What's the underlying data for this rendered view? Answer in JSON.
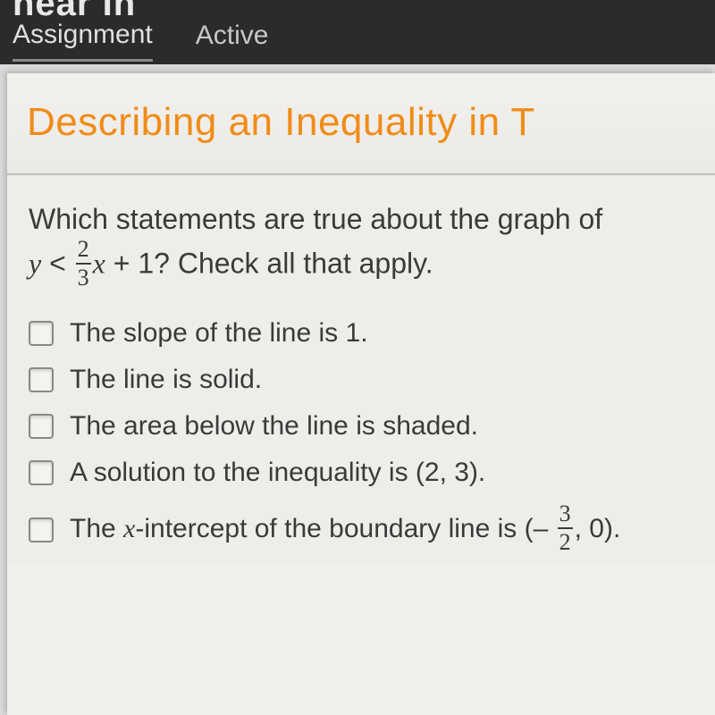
{
  "topbar": {
    "partial_title": "near In",
    "tabs": [
      {
        "label": "Assignment",
        "active": true
      },
      {
        "label": "Active",
        "active": false
      }
    ]
  },
  "lesson": {
    "heading": "Describing an Inequality in T",
    "prompt_line1": "Which statements are true about the graph of",
    "prompt_ineq": {
      "lhs_var": "y",
      "op": "<",
      "frac_num": "2",
      "frac_den": "3",
      "rhs_var": "x",
      "tail": " + 1? Check all that apply."
    },
    "options": [
      {
        "id": "opt-slope",
        "text": "The slope of the line is 1.",
        "checked": false
      },
      {
        "id": "opt-solid",
        "text": "The line is solid.",
        "checked": false
      },
      {
        "id": "opt-shaded",
        "text": "The area below the line is shaded.",
        "checked": false
      },
      {
        "id": "opt-solution",
        "text": "A solution to the inequality is (2, 3).",
        "checked": false
      },
      {
        "id": "opt-xint",
        "text_prefix": "The ",
        "math_var": "x",
        "text_mid": "-intercept of the boundary line is (– ",
        "frac_num": "3",
        "frac_den": "2",
        "text_suffix": ", 0).",
        "checked": false
      }
    ]
  },
  "colors": {
    "heading": "#f08c18",
    "topbar_bg": "#2b2b2b",
    "content_bg": "#eeede9",
    "text": "#3a3a3a"
  }
}
